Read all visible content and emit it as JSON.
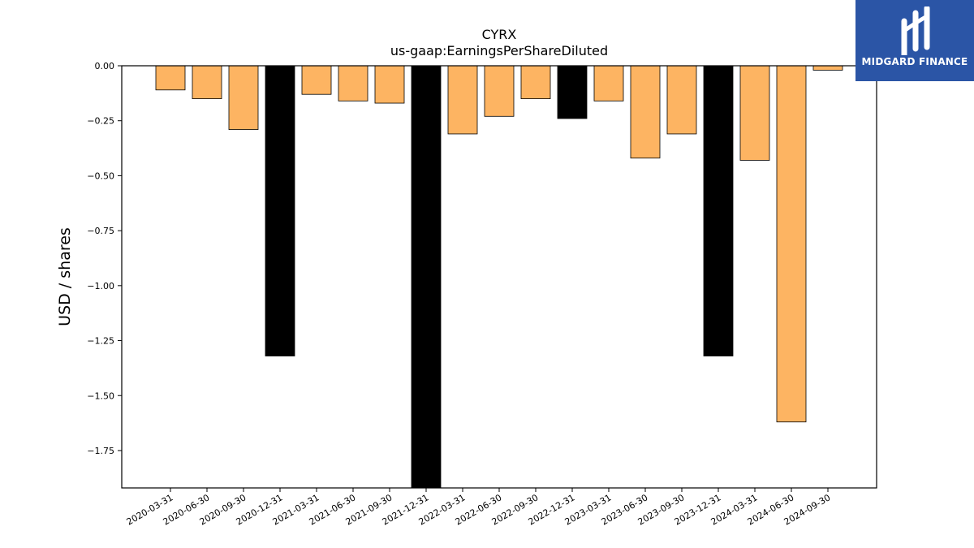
{
  "chart_data": {
    "type": "bar",
    "title": "CYRX",
    "subtitle": "us-gaap:EarningsPerShareDiluted",
    "xlabel": "",
    "ylabel": "USD / shares",
    "ylim": [
      -1.92,
      0.0
    ],
    "yticks": [
      "0.00",
      "−0.25",
      "−0.50",
      "−0.75",
      "−1.00",
      "−1.25",
      "−1.50",
      "−1.75"
    ],
    "ytick_values": [
      0,
      -0.25,
      -0.5,
      -0.75,
      -1.0,
      -1.25,
      -1.5,
      -1.75
    ],
    "grid": false,
    "categories": [
      "2020-03-31",
      "2020-06-30",
      "2020-09-30",
      "2020-12-31",
      "2021-03-31",
      "2021-06-30",
      "2021-09-30",
      "2021-12-31",
      "2022-03-31",
      "2022-06-30",
      "2022-09-30",
      "2022-12-31",
      "2023-03-31",
      "2023-06-30",
      "2023-09-30",
      "2023-12-31",
      "2024-03-31",
      "2024-06-30",
      "2024-09-30"
    ],
    "values": [
      -0.11,
      -0.15,
      -0.29,
      -1.32,
      -0.13,
      -0.16,
      -0.17,
      -1.92,
      -0.31,
      -0.23,
      -0.15,
      -0.24,
      -0.16,
      -0.42,
      -0.31,
      -1.32,
      -0.43,
      -1.62,
      -0.02
    ],
    "highlight": [
      false,
      false,
      false,
      true,
      false,
      false,
      false,
      true,
      false,
      false,
      false,
      true,
      false,
      false,
      false,
      true,
      false,
      false,
      false
    ],
    "colors": {
      "bar": "#fdb462",
      "highlight": "#000000",
      "edge": "#000000"
    }
  },
  "logo": {
    "text": "MIDGARD FINANCE",
    "background": "#2b55a6"
  }
}
